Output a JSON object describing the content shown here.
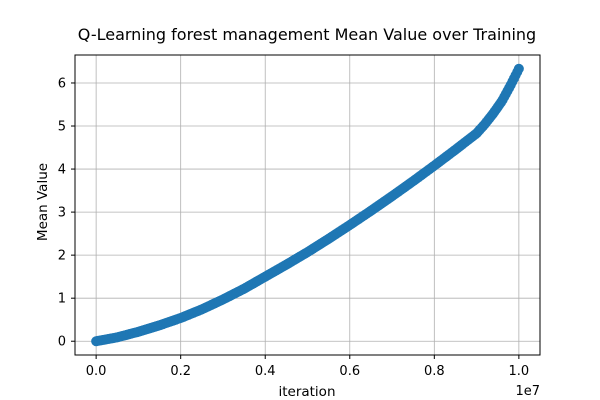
{
  "chart_data": {
    "type": "scatter",
    "title": "Q-Learning forest management Mean Value over Training",
    "xlabel": "iteration",
    "ylabel": "Mean Value",
    "x_scale_label": "1e7",
    "xlim": [
      -500000,
      10500000
    ],
    "ylim": [
      -0.32,
      6.65
    ],
    "grid": true,
    "x_ticks": [
      {
        "value": 0,
        "label": "0.0"
      },
      {
        "value": 2000000,
        "label": "0.2"
      },
      {
        "value": 4000000,
        "label": "0.4"
      },
      {
        "value": 6000000,
        "label": "0.6"
      },
      {
        "value": 8000000,
        "label": "0.8"
      },
      {
        "value": 10000000,
        "label": "1.0"
      }
    ],
    "y_ticks": [
      {
        "value": 0,
        "label": "0"
      },
      {
        "value": 1,
        "label": "1"
      },
      {
        "value": 2,
        "label": "2"
      },
      {
        "value": 3,
        "label": "3"
      },
      {
        "value": 4,
        "label": "4"
      },
      {
        "value": 5,
        "label": "5"
      },
      {
        "value": 6,
        "label": "6"
      }
    ],
    "series": [
      {
        "color": "#1f77b4",
        "points": [
          [
            0,
            0.0
          ],
          [
            500000,
            0.09
          ],
          [
            1000000,
            0.22
          ],
          [
            1500000,
            0.37
          ],
          [
            2000000,
            0.54
          ],
          [
            2500000,
            0.74
          ],
          [
            3000000,
            0.97
          ],
          [
            3500000,
            1.22
          ],
          [
            4000000,
            1.5
          ],
          [
            4500000,
            1.78
          ],
          [
            5000000,
            2.07
          ],
          [
            5500000,
            2.38
          ],
          [
            6000000,
            2.7
          ],
          [
            6500000,
            3.03
          ],
          [
            7000000,
            3.37
          ],
          [
            7500000,
            3.72
          ],
          [
            8000000,
            4.08
          ],
          [
            8500000,
            4.45
          ],
          [
            9000000,
            4.83
          ],
          [
            9200000,
            5.05
          ],
          [
            9400000,
            5.3
          ],
          [
            9600000,
            5.58
          ],
          [
            9800000,
            5.94
          ],
          [
            10000000,
            6.33
          ]
        ]
      }
    ]
  }
}
